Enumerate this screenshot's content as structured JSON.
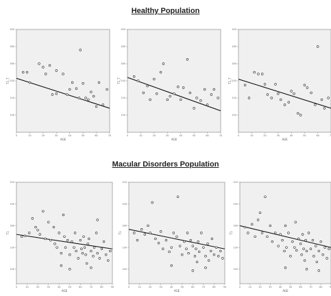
{
  "sections": {
    "healthy_title": "Healthy Population",
    "macular_title": "Macular Disorders Population"
  },
  "colors": {
    "panel_bg": "#f0f0f0",
    "marker_fill": "#ffffff",
    "marker_stroke": "#222222",
    "line": "#111111"
  },
  "chart_data": [
    {
      "type": "scatter",
      "group": "healthy",
      "xlabel": "AGE",
      "ylabel": "T1_T",
      "xlim": [
        0,
        70
      ],
      "ylim": [
        80,
        200
      ],
      "xticks": [
        "0",
        "10",
        "20",
        "30",
        "40",
        "50",
        "60",
        "70"
      ],
      "yticks": [
        "100",
        "120",
        "140",
        "160",
        "180",
        "200"
      ],
      "fit_line": {
        "x": [
          0,
          70
        ],
        "y": [
          143,
          108
        ]
      },
      "points": [
        [
          5,
          150
        ],
        [
          8,
          150
        ],
        [
          10,
          138
        ],
        [
          17,
          160
        ],
        [
          20,
          156
        ],
        [
          22,
          148
        ],
        [
          25,
          158
        ],
        [
          27,
          124
        ],
        [
          30,
          125
        ],
        [
          30,
          152
        ],
        [
          35,
          148
        ],
        [
          38,
          124
        ],
        [
          40,
          130
        ],
        [
          42,
          138
        ],
        [
          45,
          131
        ],
        [
          47,
          120
        ],
        [
          48,
          176
        ],
        [
          50,
          137
        ],
        [
          52,
          120
        ],
        [
          54,
          118
        ],
        [
          56,
          127
        ],
        [
          58,
          122
        ],
        [
          60,
          110
        ],
        [
          62,
          138
        ],
        [
          65,
          112
        ],
        [
          68,
          130
        ]
      ]
    },
    {
      "type": "scatter",
      "group": "healthy",
      "xlabel": "AGE",
      "ylabel": "T1_T",
      "xlim": [
        0,
        70
      ],
      "ylim": [
        80,
        200
      ],
      "xticks": [
        "0",
        "10",
        "20",
        "30",
        "40",
        "50",
        "60",
        "70"
      ],
      "yticks": [
        "100",
        "120",
        "140",
        "160",
        "180",
        "200"
      ],
      "fit_line": {
        "x": [
          0,
          70
        ],
        "y": [
          144,
          105
        ]
      },
      "points": [
        [
          5,
          145
        ],
        [
          8,
          140
        ],
        [
          12,
          126
        ],
        [
          15,
          134
        ],
        [
          17,
          118
        ],
        [
          20,
          142
        ],
        [
          22,
          125
        ],
        [
          25,
          150
        ],
        [
          27,
          160
        ],
        [
          30,
          118
        ],
        [
          32,
          122
        ],
        [
          35,
          125
        ],
        [
          38,
          133
        ],
        [
          40,
          118
        ],
        [
          42,
          132
        ],
        [
          45,
          165
        ],
        [
          47,
          126
        ],
        [
          50,
          108
        ],
        [
          52,
          120
        ],
        [
          55,
          117
        ],
        [
          58,
          130
        ],
        [
          60,
          112
        ],
        [
          63,
          124
        ],
        [
          65,
          130
        ],
        [
          68,
          120
        ]
      ]
    },
    {
      "type": "scatter",
      "group": "healthy",
      "xlabel": "AGE",
      "ylabel": "T1_T",
      "xlim": [
        0,
        70
      ],
      "ylim": [
        80,
        200
      ],
      "xticks": [
        "0",
        "10",
        "20",
        "30",
        "40",
        "50",
        "60",
        "70"
      ],
      "yticks": [
        "100",
        "120",
        "140",
        "160",
        "180",
        "200"
      ],
      "fit_line": {
        "x": [
          0,
          70
        ],
        "y": [
          142,
          108
        ]
      },
      "points": [
        [
          5,
          135
        ],
        [
          8,
          120
        ],
        [
          12,
          150
        ],
        [
          15,
          148
        ],
        [
          18,
          148
        ],
        [
          20,
          136
        ],
        [
          22,
          124
        ],
        [
          25,
          120
        ],
        [
          28,
          136
        ],
        [
          30,
          125
        ],
        [
          32,
          118
        ],
        [
          35,
          112
        ],
        [
          38,
          115
        ],
        [
          40,
          128
        ],
        [
          42,
          125
        ],
        [
          45,
          102
        ],
        [
          47,
          100
        ],
        [
          50,
          135
        ],
        [
          52,
          132
        ],
        [
          55,
          126
        ],
        [
          58,
          112
        ],
        [
          60,
          180
        ],
        [
          63,
          118
        ],
        [
          65,
          108
        ],
        [
          68,
          120
        ]
      ]
    },
    {
      "type": "scatter",
      "group": "macular",
      "xlabel": "AGE",
      "ylabel": "T1",
      "xlim": [
        0,
        90
      ],
      "ylim": [
        80,
        220
      ],
      "xticks": [
        "0",
        "10",
        "20",
        "30",
        "40",
        "50",
        "60",
        "70",
        "80",
        "90"
      ],
      "yticks": [
        "100",
        "130",
        "160",
        "190",
        "220"
      ],
      "fit_line": {
        "x": [
          0,
          90
        ],
        "y": [
          148,
          128
        ]
      },
      "points": [
        [
          5,
          145
        ],
        [
          8,
          146
        ],
        [
          12,
          150
        ],
        [
          15,
          170
        ],
        [
          18,
          158
        ],
        [
          20,
          154
        ],
        [
          22,
          148
        ],
        [
          25,
          180
        ],
        [
          27,
          142
        ],
        [
          30,
          165
        ],
        [
          32,
          140
        ],
        [
          35,
          158
        ],
        [
          36,
          135
        ],
        [
          38,
          130
        ],
        [
          40,
          150
        ],
        [
          42,
          122
        ],
        [
          44,
          175
        ],
        [
          45,
          145
        ],
        [
          46,
          130
        ],
        [
          48,
          140
        ],
        [
          50,
          120
        ],
        [
          52,
          138
        ],
        [
          54,
          130
        ],
        [
          55,
          150
        ],
        [
          56,
          125
        ],
        [
          58,
          115
        ],
        [
          60,
          140
        ],
        [
          61,
          128
        ],
        [
          62,
          122
        ],
        [
          63,
          145
        ],
        [
          64,
          130
        ],
        [
          65,
          120
        ],
        [
          66,
          108
        ],
        [
          67,
          135
        ],
        [
          68,
          142
        ],
        [
          70,
          125
        ],
        [
          72,
          118
        ],
        [
          73,
          130
        ],
        [
          75,
          150
        ],
        [
          76,
          122
        ],
        [
          78,
          115
        ],
        [
          80,
          128
        ],
        [
          82,
          138
        ],
        [
          84,
          120
        ],
        [
          86,
          112
        ],
        [
          88,
          125
        ],
        [
          50,
          100
        ],
        [
          42,
          105
        ],
        [
          70,
          102
        ],
        [
          76,
          168
        ]
      ]
    },
    {
      "type": "scatter",
      "group": "macular",
      "xlabel": "AGE",
      "ylabel": "T1",
      "xlim": [
        0,
        90
      ],
      "ylim": [
        80,
        220
      ],
      "xticks": [
        "0",
        "10",
        "20",
        "30",
        "40",
        "50",
        "60",
        "70",
        "80",
        "90"
      ],
      "yticks": [
        "100",
        "130",
        "160",
        "190",
        "220"
      ],
      "fit_line": {
        "x": [
          0,
          90
        ],
        "y": [
          155,
          128
        ]
      },
      "points": [
        [
          5,
          150
        ],
        [
          8,
          140
        ],
        [
          12,
          155
        ],
        [
          15,
          148
        ],
        [
          18,
          160
        ],
        [
          20,
          150
        ],
        [
          22,
          192
        ],
        [
          25,
          142
        ],
        [
          28,
          136
        ],
        [
          30,
          152
        ],
        [
          32,
          128
        ],
        [
          35,
          140
        ],
        [
          38,
          124
        ],
        [
          40,
          130
        ],
        [
          42,
          150
        ],
        [
          45,
          145
        ],
        [
          46,
          200
        ],
        [
          48,
          132
        ],
        [
          50,
          120
        ],
        [
          52,
          138
        ],
        [
          54,
          128
        ],
        [
          55,
          150
        ],
        [
          56,
          122
        ],
        [
          58,
          140
        ],
        [
          60,
          132
        ],
        [
          62,
          118
        ],
        [
          63,
          128
        ],
        [
          64,
          110
        ],
        [
          65,
          138
        ],
        [
          66,
          124
        ],
        [
          68,
          150
        ],
        [
          70,
          130
        ],
        [
          72,
          118
        ],
        [
          74,
          135
        ],
        [
          75,
          112
        ],
        [
          77,
          125
        ],
        [
          78,
          142
        ],
        [
          80,
          120
        ],
        [
          82,
          130
        ],
        [
          84,
          118
        ],
        [
          86,
          125
        ],
        [
          88,
          115
        ],
        [
          40,
          105
        ],
        [
          60,
          98
        ],
        [
          72,
          102
        ]
      ]
    },
    {
      "type": "scatter",
      "group": "macular",
      "xlabel": "AGE",
      "ylabel": "T1",
      "xlim": [
        0,
        90
      ],
      "ylim": [
        80,
        220
      ],
      "xticks": [
        "0",
        "10",
        "20",
        "30",
        "40",
        "50",
        "60",
        "70",
        "80",
        "90"
      ],
      "yticks": [
        "100",
        "130",
        "160",
        "190",
        "220"
      ],
      "fit_line": {
        "x": [
          0,
          90
        ],
        "y": [
          160,
          130
        ]
      },
      "points": [
        [
          5,
          158
        ],
        [
          8,
          150
        ],
        [
          12,
          162
        ],
        [
          15,
          145
        ],
        [
          18,
          168
        ],
        [
          20,
          178
        ],
        [
          22,
          150
        ],
        [
          25,
          200
        ],
        [
          27,
          145
        ],
        [
          30,
          160
        ],
        [
          32,
          138
        ],
        [
          35,
          150
        ],
        [
          38,
          132
        ],
        [
          40,
          148
        ],
        [
          42,
          140
        ],
        [
          44,
          125
        ],
        [
          45,
          160
        ],
        [
          46,
          130
        ],
        [
          48,
          150
        ],
        [
          50,
          118
        ],
        [
          52,
          138
        ],
        [
          54,
          130
        ],
        [
          55,
          165
        ],
        [
          56,
          126
        ],
        [
          58,
          142
        ],
        [
          60,
          135
        ],
        [
          61,
          120
        ],
        [
          62,
          148
        ],
        [
          63,
          128
        ],
        [
          64,
          112
        ],
        [
          65,
          140
        ],
        [
          66,
          125
        ],
        [
          68,
          150
        ],
        [
          70,
          128
        ],
        [
          72,
          140
        ],
        [
          73,
          118
        ],
        [
          75,
          132
        ],
        [
          76,
          110
        ],
        [
          78,
          125
        ],
        [
          80,
          138
        ],
        [
          82,
          120
        ],
        [
          84,
          130
        ],
        [
          86,
          115
        ],
        [
          88,
          128
        ],
        [
          45,
          102
        ],
        [
          66,
          100
        ],
        [
          78,
          98
        ]
      ]
    }
  ]
}
